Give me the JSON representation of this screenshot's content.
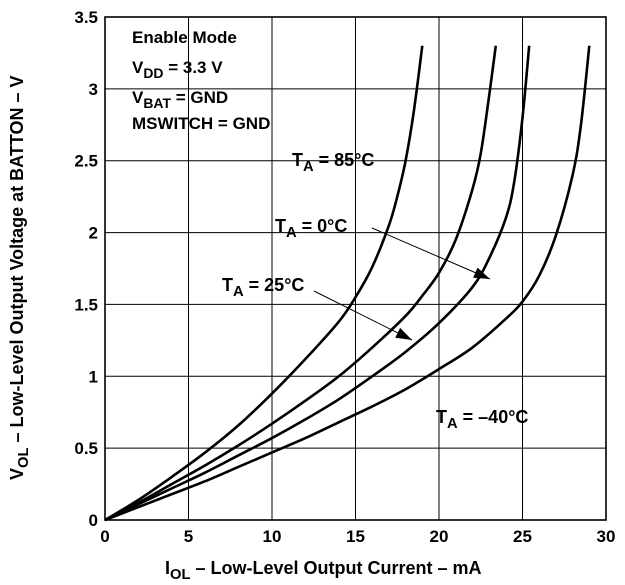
{
  "chart_data": {
    "type": "line",
    "xlabel": {
      "main": "I",
      "sub": "OL",
      "rest": " – Low-Level Output Current – mA"
    },
    "ylabel": {
      "main": "V",
      "sub": "OL",
      "rest": " – Low-Level Output Voltage at BATTON – V"
    },
    "xlim": [
      0,
      30
    ],
    "ylim": [
      0,
      3.5
    ],
    "xticks": [
      0,
      5,
      10,
      15,
      20,
      25,
      30
    ],
    "xtick_labels": [
      "0",
      "5",
      "10",
      "15",
      "20",
      "25",
      "30"
    ],
    "yticks": [
      0,
      0.5,
      1,
      1.5,
      2,
      2.5,
      3,
      3.5
    ],
    "ytick_labels": [
      "0",
      "0.5",
      "1",
      "1.5",
      "2",
      "2.5",
      "3",
      "3.5"
    ],
    "grid": true,
    "conditions": [
      {
        "main": "Enable Mode",
        "sub": "",
        "rest": ""
      },
      {
        "main": "V",
        "sub": "DD",
        "rest": " = 3.3 V"
      },
      {
        "main": "V",
        "sub": "BAT",
        "rest": " = GND"
      },
      {
        "main": "MSWITCH = GND",
        "sub": "",
        "rest": ""
      }
    ],
    "series": [
      {
        "label": {
          "main": "T",
          "sub": "A",
          "rest": " = 85°C"
        },
        "x": [
          0,
          2,
          4,
          6,
          8,
          10,
          12,
          14,
          15,
          16,
          17,
          17.5,
          18,
          18.5,
          19
        ],
        "y": [
          0,
          0.14,
          0.3,
          0.47,
          0.66,
          0.88,
          1.12,
          1.38,
          1.55,
          1.76,
          2.05,
          2.25,
          2.5,
          2.85,
          3.3
        ]
      },
      {
        "label": {
          "main": "T",
          "sub": "A",
          "rest": " = 25°C"
        },
        "x": [
          0,
          2,
          4,
          6,
          8,
          10,
          12,
          14,
          16,
          18,
          19,
          20,
          21,
          22,
          22.5,
          23,
          23.4
        ],
        "y": [
          0,
          0.12,
          0.25,
          0.38,
          0.52,
          0.67,
          0.83,
          1.0,
          1.2,
          1.42,
          1.56,
          1.72,
          1.95,
          2.3,
          2.55,
          2.95,
          3.3
        ]
      },
      {
        "label": {
          "main": "T",
          "sub": "A",
          "rest": " = 0°C"
        },
        "x": [
          0,
          2,
          4,
          6,
          8,
          10,
          12,
          14,
          16,
          18,
          20,
          22,
          23,
          24,
          24.5,
          25,
          25.4
        ],
        "y": [
          0,
          0.11,
          0.22,
          0.33,
          0.45,
          0.57,
          0.7,
          0.84,
          1.0,
          1.17,
          1.37,
          1.62,
          1.82,
          2.1,
          2.35,
          2.8,
          3.3
        ]
      },
      {
        "label": {
          "main": "T",
          "sub": "A",
          "rest": " = –40°C"
        },
        "x": [
          0,
          2,
          4,
          6,
          8,
          10,
          12,
          14,
          16,
          18,
          20,
          22,
          24,
          25,
          26,
          27,
          28,
          28.5,
          29
        ],
        "y": [
          0,
          0.09,
          0.18,
          0.27,
          0.37,
          0.47,
          0.57,
          0.68,
          0.79,
          0.91,
          1.05,
          1.2,
          1.4,
          1.52,
          1.7,
          1.98,
          2.4,
          2.75,
          3.3
        ]
      }
    ]
  }
}
